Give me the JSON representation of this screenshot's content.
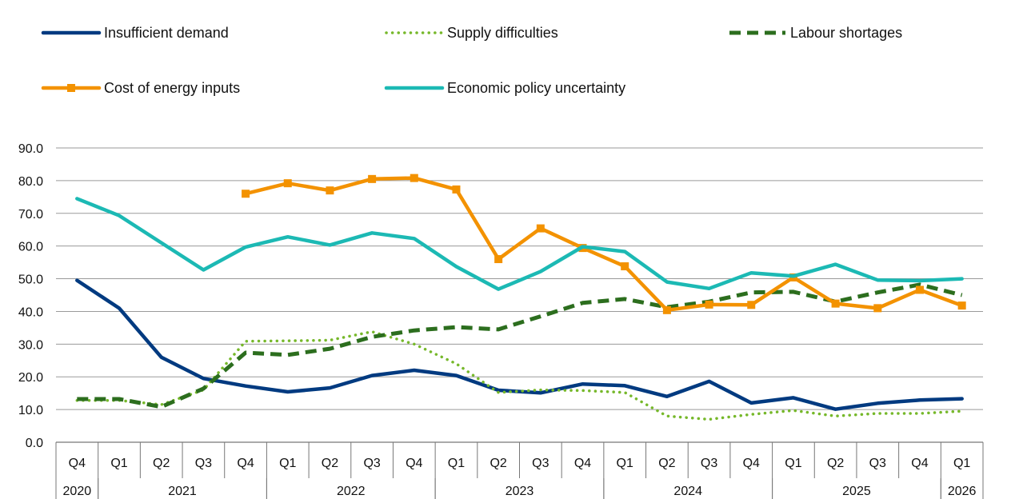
{
  "chart_data": {
    "type": "line",
    "title": "",
    "xlabel": "",
    "ylabel": "",
    "ylim": [
      0,
      90
    ],
    "y_ticks": [
      "0.0",
      "10.0",
      "20.0",
      "30.0",
      "40.0",
      "50.0",
      "60.0",
      "70.0",
      "80.0",
      "90.0"
    ],
    "grid": true,
    "legend_position": "top",
    "quarters": [
      "Q4",
      "Q1",
      "Q2",
      "Q3",
      "Q4",
      "Q1",
      "Q2",
      "Q3",
      "Q4",
      "Q1",
      "Q2",
      "Q3",
      "Q4",
      "Q1",
      "Q2",
      "Q3",
      "Q4",
      "Q1",
      "Q2",
      "Q3",
      "Q4",
      "Q1"
    ],
    "years": [
      {
        "label": "2020",
        "start": 0,
        "end": 0
      },
      {
        "label": "2021",
        "start": 1,
        "end": 4
      },
      {
        "label": "2022",
        "start": 5,
        "end": 8
      },
      {
        "label": "2023",
        "start": 9,
        "end": 12
      },
      {
        "label": "2024",
        "start": 13,
        "end": 16
      },
      {
        "label": "2025",
        "start": 17,
        "end": 20
      },
      {
        "label": "2026",
        "start": 21,
        "end": 21
      }
    ],
    "series": [
      {
        "name": "Insufficient demand",
        "color": "#003A80",
        "style": "solid",
        "values": [
          49.5,
          41.0,
          26.0,
          19.5,
          17.2,
          15.4,
          16.6,
          20.4,
          22.0,
          20.4,
          15.9,
          15.1,
          17.8,
          17.3,
          14.0,
          18.6,
          12.0,
          13.6,
          10.1,
          11.9,
          12.9,
          13.3
        ]
      },
      {
        "name": "Supply difficulties",
        "color": "#76B82A",
        "style": "dotted",
        "values": [
          12.8,
          12.8,
          11.5,
          16.0,
          30.9,
          31.0,
          31.2,
          33.8,
          30.0,
          24.0,
          15.2,
          16.0,
          15.8,
          15.2,
          8.0,
          7.0,
          8.5,
          9.7,
          8.0,
          8.8,
          8.8,
          9.5
        ]
      },
      {
        "name": "Labour shortages",
        "color": "#2C6E1E",
        "style": "dashed",
        "values": [
          13.2,
          13.2,
          10.8,
          16.4,
          27.4,
          26.7,
          28.6,
          32.2,
          34.2,
          35.2,
          34.5,
          38.5,
          42.6,
          43.8,
          41.3,
          43.0,
          45.8,
          46.0,
          43.0,
          45.8,
          48.2,
          45.0
        ]
      },
      {
        "name": "Cost of energy inputs",
        "color": "#F39200",
        "style": "solid-marker",
        "values": [
          null,
          null,
          null,
          null,
          76.0,
          79.2,
          77.0,
          80.5,
          80.8,
          77.3,
          56.0,
          65.4,
          59.4,
          53.8,
          40.4,
          42.1,
          42.0,
          50.4,
          42.4,
          41.0,
          46.6,
          41.8
        ]
      },
      {
        "name": "Economic policy uncertainty",
        "color": "#1CB9B4",
        "style": "solid",
        "values": [
          74.5,
          69.3,
          61.0,
          52.7,
          59.7,
          62.8,
          60.3,
          64.0,
          62.3,
          53.7,
          46.8,
          52.2,
          59.8,
          58.3,
          49.0,
          47.0,
          51.8,
          50.8,
          54.4,
          49.6,
          49.4,
          50.0
        ]
      }
    ]
  }
}
